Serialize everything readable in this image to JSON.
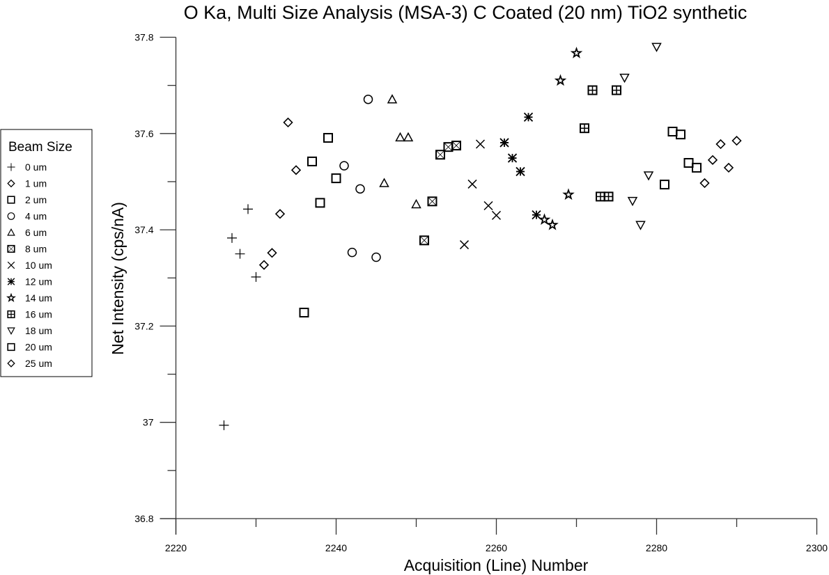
{
  "chart_data": {
    "type": "scatter",
    "title": "O Ka, Multi Size Analysis (MSA-3) C Coated (20 nm) TiO2 synthetic",
    "xlabel": "Acquisition (Line) Number",
    "ylabel": "Net Intensity (cps/nA)",
    "xlim": [
      2220,
      2300
    ],
    "ylim": [
      36.8,
      37.8
    ],
    "xticks": [
      "2220",
      "2240",
      "2260",
      "2280",
      "2300"
    ],
    "yticks": [
      "36.8",
      "37",
      "37.2",
      "37.4",
      "37.6",
      "37.8"
    ],
    "grid": false,
    "legend": {
      "title": "Beam Size",
      "placement": "left"
    },
    "series": [
      {
        "name": "0 um",
        "marker": "plus",
        "x": [
          2226,
          2227,
          2228,
          2229,
          2230
        ],
        "y": [
          36.994,
          37.383,
          37.35,
          37.443,
          37.302
        ]
      },
      {
        "name": "1 um",
        "marker": "diamond",
        "x": [
          2231,
          2232,
          2233,
          2234,
          2235
        ],
        "y": [
          37.327,
          37.352,
          37.433,
          37.623,
          37.524
        ]
      },
      {
        "name": "2 um",
        "marker": "square",
        "x": [
          2236,
          2237,
          2238,
          2239,
          2240
        ],
        "y": [
          37.228,
          37.542,
          37.456,
          37.591,
          37.507
        ]
      },
      {
        "name": "4 um",
        "marker": "circle",
        "x": [
          2241,
          2242,
          2243,
          2244,
          2245
        ],
        "y": [
          37.533,
          37.353,
          37.485,
          37.671,
          37.343
        ]
      },
      {
        "name": "6 um",
        "marker": "triangle-up",
        "x": [
          2246,
          2247,
          2248,
          2249,
          2250
        ],
        "y": [
          37.497,
          37.671,
          37.592,
          37.592,
          37.453
        ]
      },
      {
        "name": "8 um",
        "marker": "square-x",
        "x": [
          2251,
          2252,
          2253,
          2254,
          2255
        ],
        "y": [
          37.378,
          37.459,
          37.556,
          37.572,
          37.575
        ]
      },
      {
        "name": "10 um",
        "marker": "x",
        "x": [
          2256,
          2257,
          2258,
          2259,
          2260
        ],
        "y": [
          37.369,
          37.495,
          37.578,
          37.45,
          37.43
        ]
      },
      {
        "name": "12 um",
        "marker": "asterisk",
        "x": [
          2261,
          2262,
          2263,
          2264,
          2265
        ],
        "y": [
          37.581,
          37.549,
          37.521,
          37.634,
          37.431
        ]
      },
      {
        "name": "14 um",
        "marker": "star",
        "x": [
          2266,
          2267,
          2268,
          2269,
          2270
        ],
        "y": [
          37.421,
          37.41,
          37.71,
          37.473,
          37.767
        ]
      },
      {
        "name": "16 um",
        "marker": "square-plus",
        "x": [
          2271,
          2272,
          2273,
          2274,
          2275
        ],
        "y": [
          37.611,
          37.69,
          37.469,
          37.469,
          37.69
        ]
      },
      {
        "name": "18 um",
        "marker": "triangle-down",
        "x": [
          2276,
          2277,
          2278,
          2279,
          2280
        ],
        "y": [
          37.716,
          37.46,
          37.41,
          37.513,
          37.78
        ]
      },
      {
        "name": "20 um",
        "marker": "square",
        "x": [
          2281,
          2282,
          2283,
          2284,
          2285
        ],
        "y": [
          37.494,
          37.604,
          37.598,
          37.539,
          37.529
        ]
      },
      {
        "name": "25 um",
        "marker": "diamond",
        "x": [
          2286,
          2287,
          2288,
          2289,
          2290
        ],
        "y": [
          37.497,
          37.545,
          37.578,
          37.529,
          37.585
        ]
      }
    ]
  }
}
